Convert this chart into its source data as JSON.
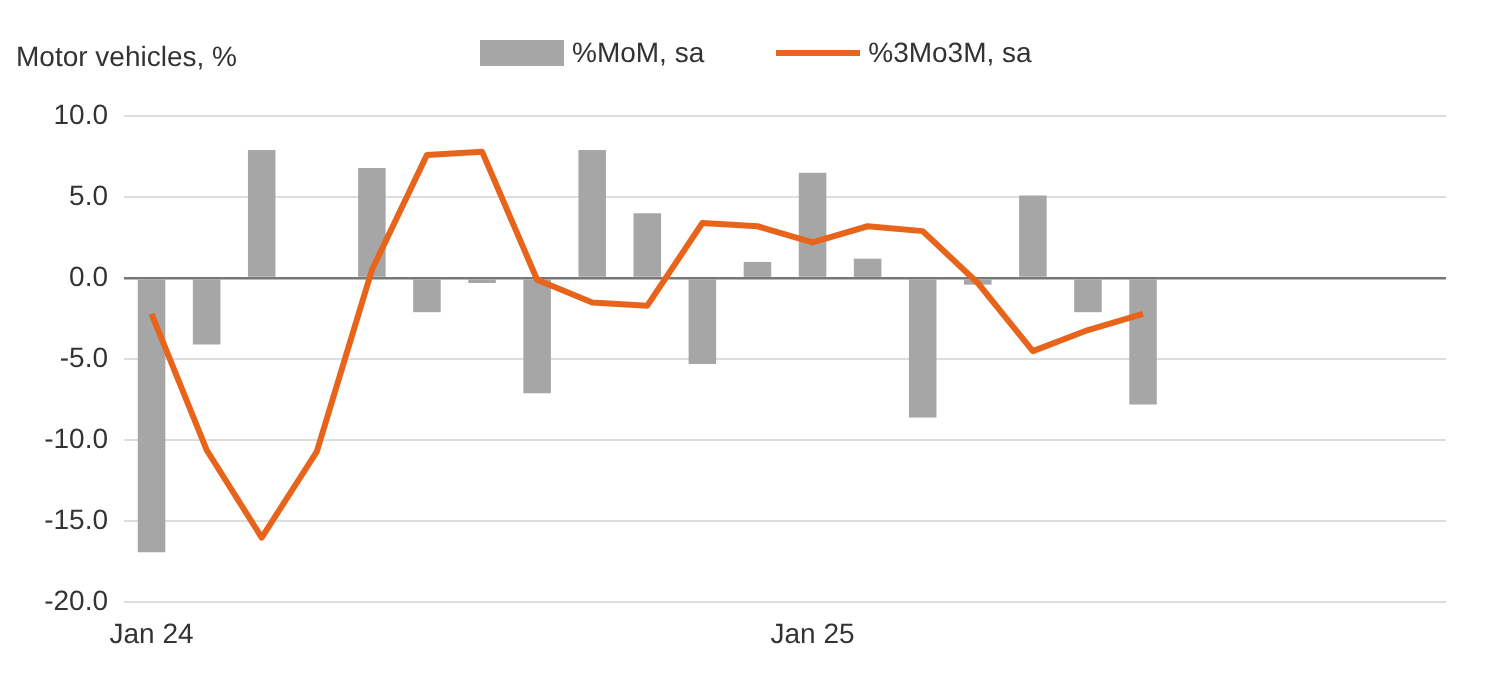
{
  "chart_data": {
    "type": "bar",
    "ylabel": "Motor vehicles, %",
    "categories": [
      "Jan 24",
      null,
      null,
      null,
      null,
      null,
      null,
      null,
      null,
      null,
      null,
      null,
      "Jan 25",
      null,
      null,
      null,
      null,
      null,
      null,
      null,
      null,
      null,
      null,
      null
    ],
    "series": [
      {
        "name": "%MoM, sa",
        "color": "#a6a6a6",
        "values": [
          -16.9,
          -4.1,
          7.9,
          null,
          6.8,
          -2.1,
          -0.3,
          -7.1,
          7.9,
          4.0,
          -5.3,
          1.0,
          6.5,
          1.2,
          -8.6,
          -0.4,
          5.1,
          -2.1,
          -7.8,
          null,
          null,
          null,
          null,
          null
        ]
      },
      {
        "name": "%3Mo3M, sa",
        "type": "line",
        "color": "#e8641b",
        "values": [
          -2.2,
          -10.6,
          -16.0,
          -10.7,
          0.5,
          7.6,
          7.8,
          -0.1,
          -1.5,
          -1.7,
          3.4,
          3.2,
          2.2,
          3.2,
          2.9,
          -0.3,
          -4.5,
          -3.2,
          -2.2,
          null,
          null,
          null,
          null,
          null
        ]
      }
    ],
    "ylim": [
      -20,
      10
    ],
    "yticks": [
      {
        "value": -20,
        "label": "-20.0"
      },
      {
        "value": -15,
        "label": "-15.0"
      },
      {
        "value": -10,
        "label": "-10.0"
      },
      {
        "value": -5,
        "label": "-5.0"
      },
      {
        "value": 0,
        "label": "0.0"
      },
      {
        "value": 5,
        "label": "5.0"
      },
      {
        "value": 10,
        "label": "10.0"
      }
    ],
    "grid": "y",
    "legend": "top",
    "marker": "none",
    "line_style": "solid"
  }
}
